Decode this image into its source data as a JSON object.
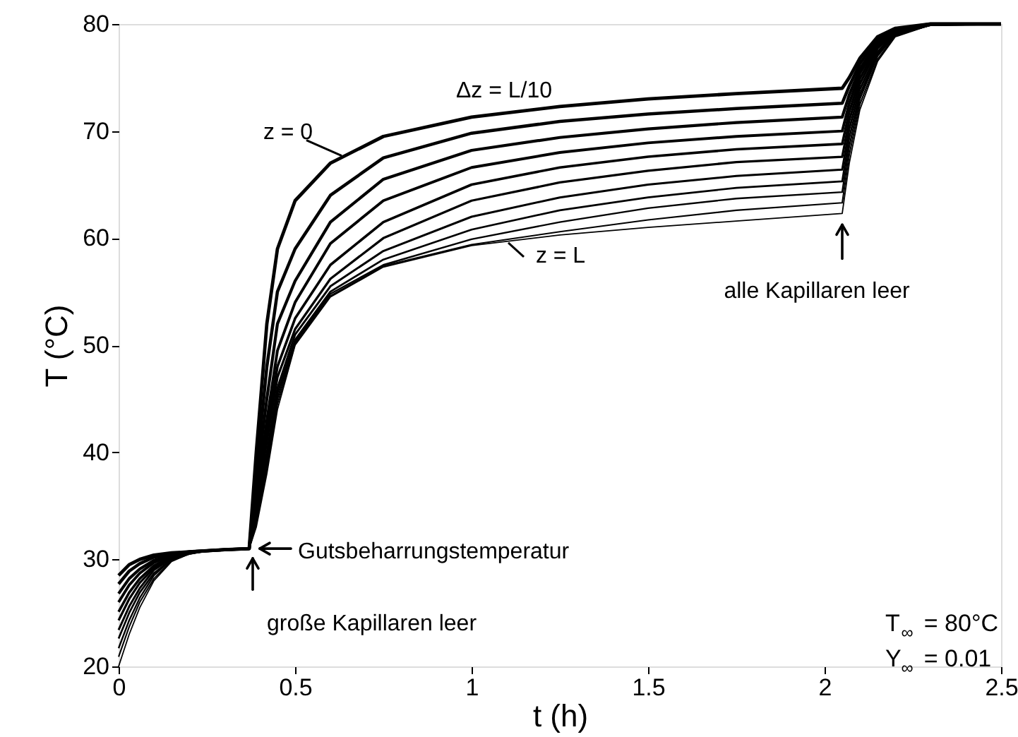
{
  "chart_data": {
    "type": "line",
    "xlabel": "t (h)",
    "ylabel": "T (°C)",
    "xlim": [
      0,
      2.5
    ],
    "ylim": [
      20,
      80
    ],
    "xticks": [
      0,
      0.5,
      1,
      1.5,
      2,
      2.5
    ],
    "yticks": [
      20,
      30,
      40,
      50,
      60,
      70,
      80
    ],
    "grid": false,
    "legend": false,
    "marker": "none",
    "line_style": "solid",
    "x": [
      0,
      0.03,
      0.06,
      0.1,
      0.15,
      0.2,
      0.25,
      0.3,
      0.37,
      0.39,
      0.42,
      0.45,
      0.5,
      0.6,
      0.75,
      1.0,
      1.25,
      1.5,
      1.75,
      2.05,
      2.07,
      2.1,
      2.15,
      2.2,
      2.3,
      2.5
    ],
    "series": [
      {
        "color": "#000000",
        "values": [
          28.5,
          29.5,
          30,
          30.4,
          30.6,
          30.7,
          30.8,
          30.9,
          31,
          40,
          52,
          59,
          63.5,
          67,
          69.5,
          71.3,
          72.3,
          73,
          73.5,
          74,
          75,
          76.8,
          78.8,
          79.6,
          80,
          80
        ]
      },
      {
        "color": "#000000",
        "values": [
          27.7,
          28.9,
          29.6,
          30.2,
          30.5,
          30.7,
          30.8,
          30.9,
          31,
          38,
          48,
          55,
          59,
          64,
          67.5,
          69.8,
          70.9,
          71.6,
          72.1,
          72.6,
          74.2,
          76.3,
          78.6,
          79.5,
          80,
          80
        ]
      },
      {
        "color": "#000000",
        "values": [
          26.8,
          28.2,
          29.1,
          29.9,
          30.4,
          30.7,
          30.8,
          30.9,
          31,
          37,
          45,
          52,
          56,
          61.5,
          65.5,
          68.2,
          69.4,
          70.2,
          70.8,
          71.3,
          73.4,
          75.8,
          78.3,
          79.4,
          80,
          80
        ]
      },
      {
        "color": "#000000",
        "values": [
          26,
          27.6,
          28.7,
          29.7,
          30.4,
          30.6,
          30.8,
          30.9,
          31,
          36,
          43,
          49.5,
          54,
          59.5,
          63.5,
          66.6,
          68,
          68.9,
          69.5,
          70,
          72.6,
          75.4,
          78.1,
          79.4,
          80,
          80
        ]
      },
      {
        "color": "#000000",
        "values": [
          25.1,
          26.9,
          28.2,
          29.4,
          30.3,
          30.6,
          30.8,
          30.9,
          31,
          35.5,
          42,
          48,
          52.5,
          57.5,
          61.5,
          65,
          66.6,
          67.6,
          68.3,
          68.8,
          71.8,
          74.9,
          77.9,
          79.3,
          80,
          80
        ]
      },
      {
        "color": "#000000",
        "values": [
          24.3,
          26.3,
          27.8,
          29.2,
          30.2,
          30.6,
          30.8,
          30.9,
          31,
          35,
          41,
          47,
          51.5,
          56.2,
          60,
          63.5,
          65.2,
          66.3,
          67.1,
          67.6,
          71,
          74.4,
          77.7,
          79.2,
          80,
          80
        ]
      },
      {
        "color": "#000000",
        "values": [
          23.4,
          25.6,
          27.3,
          29,
          30.1,
          30.6,
          30.8,
          30.9,
          31,
          34.5,
          40,
          46,
          51,
          55.5,
          58.8,
          62,
          63.8,
          65,
          65.8,
          66.4,
          70.2,
          73.9,
          77.4,
          79.1,
          79.9,
          80
        ]
      },
      {
        "color": "#000000",
        "values": [
          22.6,
          25,
          26.9,
          28.7,
          30,
          30.6,
          30.8,
          30.9,
          31,
          34,
          39.5,
          45.5,
          50.5,
          55,
          58,
          60.8,
          62.6,
          63.8,
          64.7,
          65.3,
          69.4,
          73.4,
          77.2,
          79,
          79.9,
          80
        ]
      },
      {
        "color": "#000000",
        "values": [
          21.7,
          24.3,
          26.4,
          28.5,
          30,
          30.5,
          30.8,
          30.9,
          31,
          33.7,
          39,
          45,
          50.3,
          54.8,
          57.5,
          59.9,
          61.5,
          62.8,
          63.7,
          64.3,
          68.6,
          73,
          77,
          79,
          79.9,
          80
        ]
      },
      {
        "color": "#000000",
        "values": [
          20.9,
          23.7,
          26,
          28.2,
          29.9,
          30.5,
          30.8,
          30.9,
          31,
          33.3,
          38.5,
          44.5,
          50.1,
          54.6,
          57.4,
          59.4,
          60.6,
          61.7,
          62.6,
          63.3,
          67.8,
          72.5,
          76.7,
          78.9,
          79.9,
          80
        ]
      },
      {
        "color": "#000000",
        "values": [
          20,
          23,
          25.5,
          28,
          29.8,
          30.5,
          30.8,
          30.9,
          31,
          33,
          38,
          44,
          50,
          54.5,
          57.3,
          59.3,
          60.3,
          61,
          61.6,
          62.3,
          67,
          72,
          76.5,
          78.8,
          79.9,
          80
        ]
      }
    ],
    "annotations": [
      "Δz = L/10",
      {
        "text": "z = 0",
        "x": 0.64,
        "y": 67.7
      },
      {
        "text": "z = L",
        "x": 1.1,
        "y": 59.7
      },
      {
        "text": "Gutsbeharrungstemperatur",
        "x": 0.38,
        "y": 31
      },
      {
        "text": "große Kapillaren leer",
        "x": 0.38,
        "y": 31
      },
      {
        "text": "alle Kapillaren leer",
        "x": 2.05,
        "y": 62.3
      },
      "T$_{∞}$ = 80°C",
      "Y$_{∞}$ = 0.01"
    ]
  }
}
